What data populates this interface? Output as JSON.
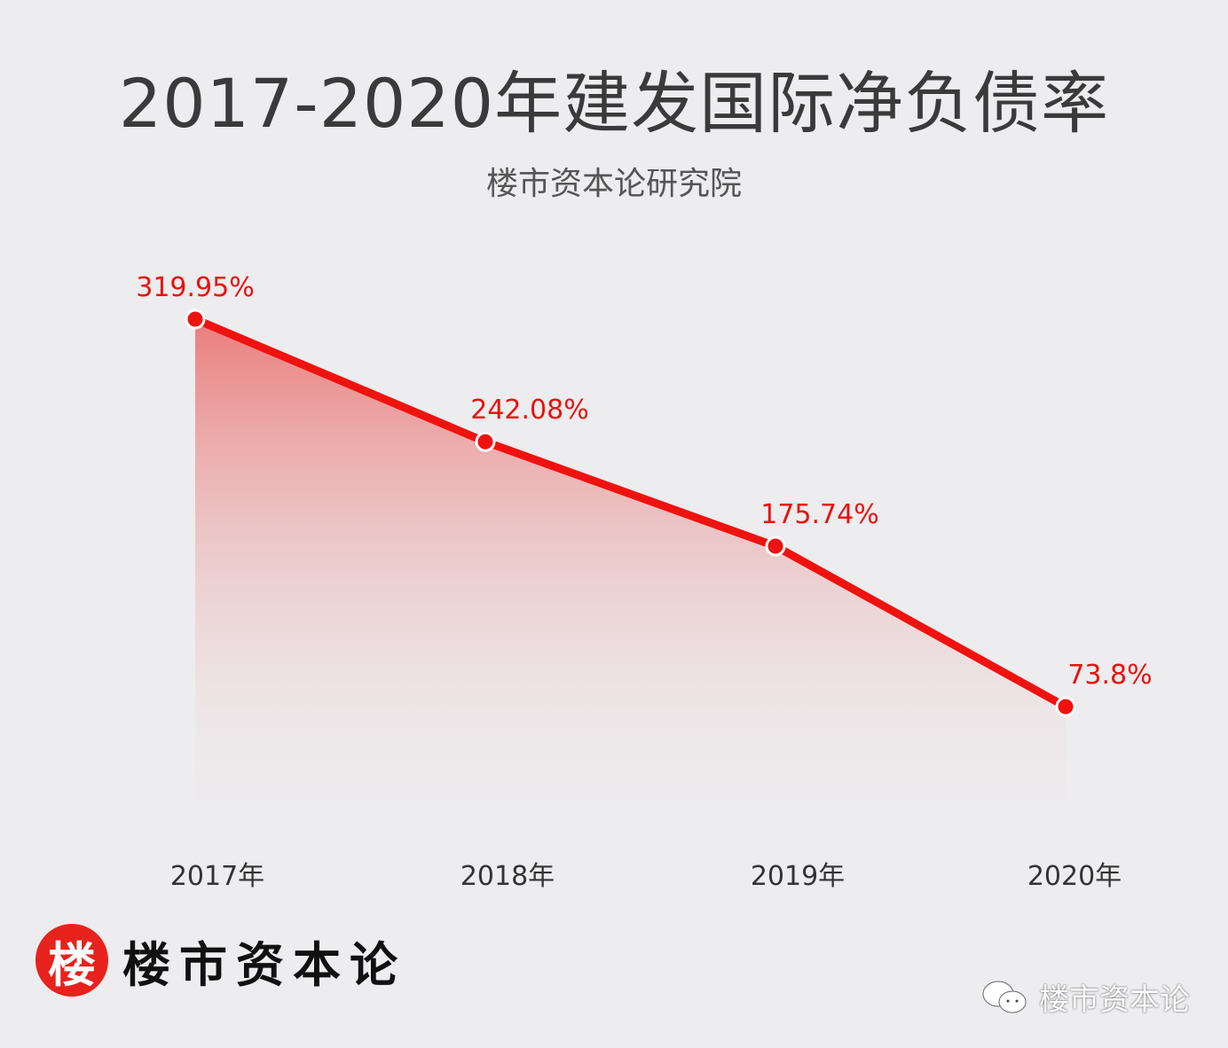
{
  "header": {
    "title": "2017-2020年建发国际净负债率",
    "subtitle": "楼市资本论研究院"
  },
  "chart_data": {
    "type": "area",
    "title": "2017-2020年建发国际净负债率",
    "subtitle": "楼市资本论研究院",
    "categories": [
      "2017年",
      "2018年",
      "2019年",
      "2020年"
    ],
    "values": [
      319.95,
      242.08,
      175.74,
      73.8
    ],
    "labels": [
      "319.95%",
      "242.08%",
      "175.74%",
      "73.8%"
    ],
    "xlabel": "",
    "ylabel": "",
    "ylim": [
      0,
      330
    ],
    "grid": false,
    "color": "#f0120f"
  },
  "footer": {
    "logo_char": "楼",
    "logo_text": "楼市资本论",
    "watermark": "楼市资本论"
  }
}
